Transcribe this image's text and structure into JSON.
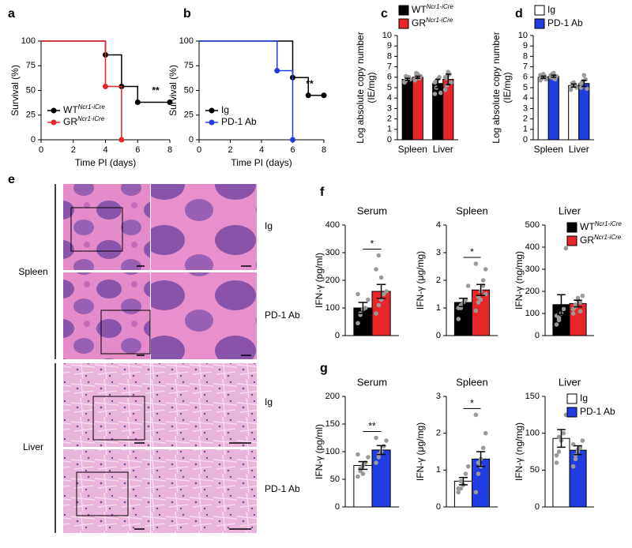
{
  "chart_data": [
    {
      "type": "survival",
      "panel": "a",
      "xlabel": "Time PI (days)",
      "ylabel": [
        "Survival (%)"
      ],
      "xlim": [
        0,
        8
      ],
      "xticks": [
        0,
        2,
        4,
        6,
        8
      ],
      "ylim": [
        0,
        100
      ],
      "yticks": [
        0,
        25,
        50,
        75,
        100
      ],
      "significance": "**",
      "series": [
        {
          "name": "WT",
          "name_sup": "Ncr1-iCre",
          "color": "#000000",
          "x": [
            0,
            4,
            5,
            6,
            8
          ],
          "values": [
            100,
            86,
            54,
            38,
            38
          ]
        },
        {
          "name": "GR",
          "name_sup": "Ncr1-iCre",
          "color": "#e8262a",
          "x": [
            0,
            4,
            5
          ],
          "values": [
            100,
            54,
            0
          ]
        }
      ]
    },
    {
      "type": "survival",
      "panel": "b",
      "xlabel": "Time PI (days)",
      "ylabel": [
        "Survival (%)"
      ],
      "xlim": [
        0,
        8
      ],
      "xticks": [
        0,
        2,
        4,
        6,
        8
      ],
      "ylim": [
        0,
        100
      ],
      "yticks": [
        0,
        25,
        50,
        75,
        100
      ],
      "significance": "**",
      "series": [
        {
          "name": "Ig",
          "color": "#000000",
          "x": [
            0,
            6,
            7,
            8
          ],
          "values": [
            100,
            63,
            45,
            45
          ]
        },
        {
          "name": "PD-1 Ab",
          "color": "#1f3de0",
          "x": [
            0,
            5,
            6
          ],
          "values": [
            100,
            70,
            0
          ]
        }
      ]
    },
    {
      "type": "bar",
      "panel": "c",
      "ylabel": [
        "Log absolute copy number",
        "(IE/mg)"
      ],
      "categories": [
        "Spleen",
        "Liver"
      ],
      "ylim": [
        0,
        10
      ],
      "yticks": [
        0,
        1,
        2,
        3,
        4,
        5,
        6,
        7,
        8,
        9,
        10
      ],
      "series": [
        {
          "name": "WT",
          "name_sup": "Ncr1-iCre",
          "color": "#000000",
          "values": [
            5.8,
            5.4
          ],
          "errors": [
            0.1,
            0.4
          ],
          "points": [
            [
              5.5,
              5.7,
              5.9,
              6.0,
              5.8,
              5.6,
              6.1,
              5.9
            ],
            [
              4.4,
              5.0,
              5.8,
              6.0,
              4.5,
              5.5,
              5.6
            ]
          ]
        },
        {
          "name": "GR",
          "name_sup": "Ncr1-iCre",
          "color": "#e8262a",
          "values": [
            6.0,
            5.8
          ],
          "errors": [
            0.1,
            0.5
          ],
          "points": [
            [
              5.7,
              6.2,
              6.3,
              5.9,
              6.1,
              5.8,
              6.4
            ],
            [
              4.8,
              5.2,
              6.5,
              6.3,
              5.5,
              6.0,
              5.9,
              6.2
            ]
          ]
        }
      ]
    },
    {
      "type": "bar",
      "panel": "d",
      "ylabel": [
        "Log absolute copy number",
        "(IE/mg)"
      ],
      "categories": [
        "Spleen",
        "Liver"
      ],
      "ylim": [
        0,
        10
      ],
      "yticks": [
        0,
        1,
        2,
        3,
        4,
        5,
        6,
        7,
        8,
        9,
        10
      ],
      "series": [
        {
          "name": "Ig",
          "color": "#ffffff",
          "values": [
            6.0,
            5.2
          ],
          "errors": [
            0.1,
            0.15
          ],
          "points": [
            [
              5.7,
              6.0,
              6.3,
              6.1,
              5.8,
              6.2,
              5.9
            ],
            [
              4.9,
              5.2,
              5.5,
              5.3,
              5.0,
              4.8,
              5.4
            ]
          ]
        },
        {
          "name": "PD-1 Ab",
          "color": "#1f3de0",
          "values": [
            6.1,
            5.4
          ],
          "errors": [
            0.1,
            0.3
          ],
          "points": [
            [
              6.0,
              6.3,
              6.4,
              5.8,
              6.1,
              6.2,
              6.0,
              5.9
            ],
            [
              5.0,
              5.5,
              6.2,
              5.8,
              4.9,
              5.4,
              5.6
            ]
          ]
        }
      ]
    },
    {
      "type": "bar",
      "panel": "f",
      "title": "Serum",
      "ylabel": [
        "IFN-γ (pg/ml)"
      ],
      "ylim": [
        0,
        400
      ],
      "yticks": [
        0,
        100,
        200,
        300,
        400
      ],
      "significance": "*",
      "series": [
        {
          "color": "#000000",
          "values": [
            100
          ],
          "errors": [
            20
          ],
          "points": [
            [
              45,
              75,
              95,
              100,
              130,
              150,
              80
            ]
          ]
        },
        {
          "color": "#e8262a",
          "values": [
            160
          ],
          "errors": [
            25
          ],
          "points": [
            [
              80,
              110,
              130,
              150,
              160,
              240,
              290,
              210
            ]
          ]
        }
      ]
    },
    {
      "type": "bar",
      "title": "Spleen",
      "ylabel": [
        "IFN-γ (μg/mg)"
      ],
      "ylim": [
        0,
        4
      ],
      "yticks": [
        0,
        1,
        2,
        3,
        4
      ],
      "significance": "*",
      "series": [
        {
          "color": "#000000",
          "values": [
            1.2
          ],
          "errors": [
            0.15
          ],
          "points": [
            [
              0.6,
              1.0,
              1.2,
              1.3,
              1.8,
              1.0,
              1.1
            ]
          ]
        },
        {
          "color": "#e8262a",
          "values": [
            1.65
          ],
          "errors": [
            0.2
          ],
          "points": [
            [
              0.9,
              1.2,
              1.6,
              1.8,
              2.4,
              2.6,
              1.4,
              1.3,
              2.0,
              1.5
            ]
          ]
        }
      ]
    },
    {
      "type": "bar",
      "title": "Liver",
      "ylabel": [
        "IFN-γ (ng/mg)"
      ],
      "ylim": [
        0,
        500
      ],
      "yticks": [
        0,
        100,
        200,
        300,
        400,
        500
      ],
      "series": [
        {
          "name": "WT",
          "name_sup": "Ncr1-iCre",
          "color": "#000000",
          "values": [
            140
          ],
          "errors": [
            45
          ],
          "points": [
            [
              50,
              80,
              100,
              120,
              395,
              90,
              70
            ]
          ]
        },
        {
          "name": "GR",
          "name_sup": "Ncr1-iCre",
          "color": "#e8262a",
          "values": [
            145
          ],
          "errors": [
            15
          ],
          "points": [
            [
              100,
              130,
              170,
              150,
              180,
              120,
              140,
              160,
              110
            ]
          ]
        }
      ]
    },
    {
      "type": "bar",
      "panel": "g",
      "title": "Serum",
      "ylabel": [
        "IFN-γ (pg/ml)"
      ],
      "ylim": [
        0,
        200
      ],
      "yticks": [
        0,
        50,
        100,
        150,
        200
      ],
      "significance": "**",
      "series": [
        {
          "color": "#ffffff",
          "values": [
            75
          ],
          "errors": [
            7
          ],
          "points": [
            [
              55,
              65,
              75,
              80,
              90,
              95,
              70,
              60
            ]
          ]
        },
        {
          "color": "#1f3de0",
          "values": [
            103
          ],
          "errors": [
            8
          ],
          "points": [
            [
              80,
              95,
              100,
              110,
              120,
              125,
              90
            ]
          ]
        }
      ]
    },
    {
      "type": "bar",
      "title": "Spleen",
      "ylabel": [
        "IFN-γ (μg/mg)"
      ],
      "ylim": [
        0,
        3
      ],
      "yticks": [
        0,
        1,
        2,
        3
      ],
      "significance": "*",
      "series": [
        {
          "color": "#ffffff",
          "values": [
            0.7
          ],
          "errors": [
            0.1
          ],
          "points": [
            [
              0.4,
              0.5,
              0.6,
              0.9,
              1.1,
              0.5,
              0.7,
              0.6
            ]
          ]
        },
        {
          "color": "#1f3de0",
          "values": [
            1.3
          ],
          "errors": [
            0.2
          ],
          "points": [
            [
              0.4,
              0.9,
              1.3,
              1.6,
              2.0,
              2.5,
              1.2,
              1.1
            ]
          ]
        }
      ]
    },
    {
      "type": "bar",
      "title": "Liver",
      "ylabel": [
        "IFN-γ (ng/mg)"
      ],
      "ylim": [
        0,
        150
      ],
      "yticks": [
        0,
        50,
        100,
        150
      ],
      "series": [
        {
          "name": "Ig",
          "color": "#ffffff",
          "values": [
            93
          ],
          "errors": [
            12
          ],
          "points": [
            [
              60,
              75,
              90,
              100,
              125,
              70,
              95
            ]
          ]
        },
        {
          "name": "PD-1 Ab",
          "color": "#1f3de0",
          "values": [
            77
          ],
          "errors": [
            6
          ],
          "points": [
            [
              55,
              65,
              75,
              80,
              90,
              85,
              70,
              78
            ]
          ]
        }
      ]
    }
  ],
  "panel_e": {
    "panel": "e",
    "tissues": [
      "Spleen",
      "Liver"
    ],
    "treatments": [
      "Ig",
      "PD-1 Ab",
      "Ig",
      "PD-1 Ab"
    ]
  }
}
